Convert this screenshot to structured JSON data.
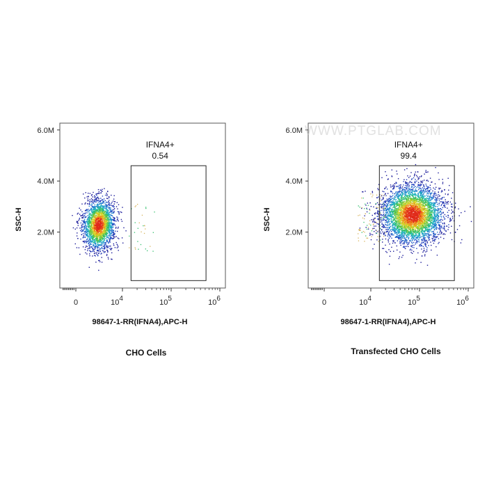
{
  "watermark": "WWW.PTGLAB.COM",
  "chart_data": [
    {
      "type": "scatter",
      "subtype": "flow-cytometry density dot plot",
      "caption": "CHO Cells",
      "xlabel": "98647-1-RR(IFNA4),APC-H",
      "ylabel": "SSC-H",
      "x_scale": "biexponential",
      "x_ticks": [
        {
          "value": 0,
          "base": "0",
          "exp": ""
        },
        {
          "value": 10000,
          "base": "10",
          "exp": "4"
        },
        {
          "value": 100000,
          "base": "10",
          "exp": "5"
        },
        {
          "value": 1000000,
          "base": "10",
          "exp": "6"
        }
      ],
      "y_ticks": [
        {
          "value": 2000000,
          "label": "2.0M"
        },
        {
          "value": 4000000,
          "label": "4.0M"
        },
        {
          "value": 6000000,
          "label": "6.0M"
        }
      ],
      "ylim": [
        0,
        6500000
      ],
      "gate": {
        "name": "IFNA4+",
        "value": "0.54",
        "x_range": [
          15000,
          520000
        ],
        "y_range": [
          100000,
          4600000
        ]
      },
      "population": {
        "center_x": 3500,
        "center_y": 2300000,
        "approx_events": 2400
      }
    },
    {
      "type": "scatter",
      "subtype": "flow-cytometry density dot plot",
      "caption": "Transfected CHO Cells",
      "xlabel": "98647-1-RR(IFNA4),APC-H",
      "ylabel": "SSC-H",
      "x_scale": "biexponential",
      "x_ticks": [
        {
          "value": 0,
          "base": "0",
          "exp": ""
        },
        {
          "value": 10000,
          "base": "10",
          "exp": "4"
        },
        {
          "value": 100000,
          "base": "10",
          "exp": "5"
        },
        {
          "value": 1000000,
          "base": "10",
          "exp": "6"
        }
      ],
      "y_ticks": [
        {
          "value": 2000000,
          "label": "2.0M"
        },
        {
          "value": 4000000,
          "label": "4.0M"
        },
        {
          "value": 6000000,
          "label": "6.0M"
        }
      ],
      "ylim": [
        0,
        6500000
      ],
      "gate": {
        "name": "IFNA4+",
        "value": "99.4",
        "x_range": [
          15000,
          520000
        ],
        "y_range": [
          100000,
          4600000
        ]
      },
      "population": {
        "center_x": 70000,
        "center_y": 2700000,
        "approx_events": 4200
      }
    }
  ]
}
